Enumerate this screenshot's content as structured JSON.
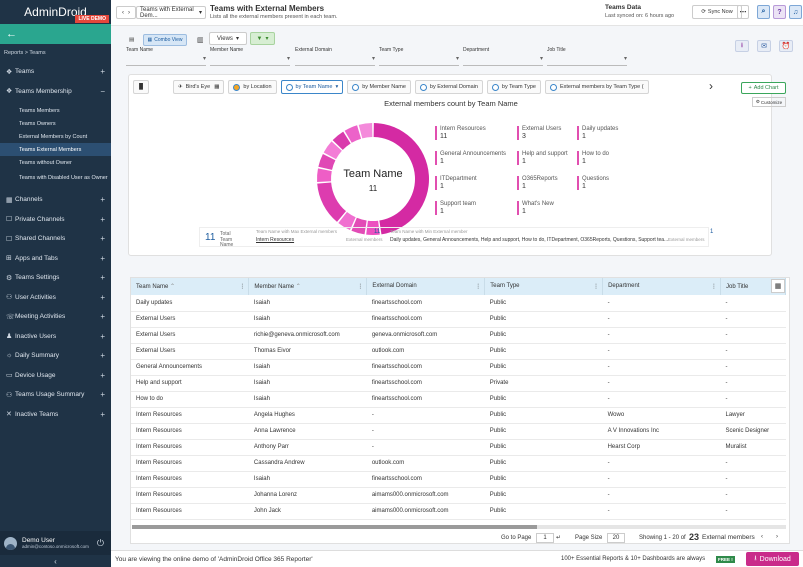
{
  "app": {
    "logo": "AdminDroid",
    "demo_badge": "LIVE DEMO"
  },
  "sidebar": {
    "breadcrumb": "Reports > Teams",
    "items": [
      {
        "label": "Teams",
        "icon": "teams-icon"
      },
      {
        "label": "Teams Membership",
        "icon": "membership-icon"
      },
      {
        "label": "Channels",
        "icon": "channels-icon"
      },
      {
        "label": "Private Channels",
        "icon": "private-channels-icon"
      },
      {
        "label": "Shared Channels",
        "icon": "shared-channels-icon"
      },
      {
        "label": "Apps and Tabs",
        "icon": "apps-icon"
      },
      {
        "label": "Teams Settings",
        "icon": "settings-icon"
      },
      {
        "label": "User Activities",
        "icon": "user-activities-icon"
      },
      {
        "label": "Meeting Activities",
        "icon": "meeting-icon"
      },
      {
        "label": "Inactive Users",
        "icon": "inactive-users-icon"
      },
      {
        "label": "Daily Summary",
        "icon": "daily-summary-icon"
      },
      {
        "label": "Device Usage",
        "icon": "device-icon"
      },
      {
        "label": "Teams Usage Summary",
        "icon": "usage-icon"
      },
      {
        "label": "Inactive Teams",
        "icon": "inactive-teams-icon"
      }
    ],
    "subitems": [
      "Teams Members",
      "Teams Owners",
      "External Members by Count",
      "Teams External Members",
      "Teams without Owner",
      "Teams with Disabled User as Owner"
    ],
    "user": {
      "name": "Demo User",
      "email": "admin@contoso.onmicrosoft.com"
    }
  },
  "topbar": {
    "crumb": "Teams with External Dem...",
    "title": "Teams with External Members",
    "subtitle": "Lists all the external members present in each team.",
    "sync_label": "Teams Data",
    "sync_time": "Last synced on: 6 hours ago",
    "sync_button": "Sync Now"
  },
  "toolbar": {
    "combo_view": "Combo View",
    "views": "Views",
    "filters": [
      {
        "label": "Team Name"
      },
      {
        "label": "Member Name"
      },
      {
        "label": "External Domain"
      },
      {
        "label": "Team Type"
      },
      {
        "label": "Department"
      },
      {
        "label": "Job Title"
      }
    ]
  },
  "chart_tabs": [
    "Bird's Eye",
    "by Location",
    "by Team Name",
    "by Member Name",
    "by External Domain",
    "by Team Type",
    "External members by Team Type ("
  ],
  "add_chart": "Add Chart",
  "customize": "Customize",
  "chart_data": {
    "type": "pie",
    "title": "External members count by Team Name",
    "center_label": "Team Name",
    "center_value": "11",
    "categories": [
      "Intern Resources",
      "General Announcements",
      "ITDepartment",
      "Support team",
      "External Users",
      "Help and support",
      "O365Reports",
      "What's New",
      "Daily updates",
      "How to do",
      "Questions"
    ],
    "values": [
      11,
      1,
      1,
      1,
      3,
      1,
      1,
      1,
      1,
      1,
      1
    ]
  },
  "summary": {
    "total_value": "11",
    "total_label": "Total Team Name",
    "max_label": "Team Name with Max External members",
    "max_name": "Intern Resources",
    "max_value": "11",
    "max_unit": "External members",
    "min_label": "Team Name with Min External member",
    "min_names": "Daily updates, General Announcements, Help and support, How to do, ITDepartment, O365Reports, Questions, Support tea...",
    "min_value": "1",
    "min_unit": "External members"
  },
  "table": {
    "columns": [
      "Team Name",
      "Member Name",
      "External Domain",
      "Team Type",
      "Department",
      "Job Title"
    ],
    "rows": [
      [
        "Daily updates",
        "Isaiah",
        "fineartsschool.com",
        "Public",
        "-",
        "-"
      ],
      [
        "External Users",
        "Isaiah",
        "fineartsschool.com",
        "Public",
        "-",
        "-"
      ],
      [
        "External Users",
        "richie@geneva.onmicrosoft.com",
        "geneva.onmicrosoft.com",
        "Public",
        "-",
        "-"
      ],
      [
        "External Users",
        "Thomas Eivor",
        "outlook.com",
        "Public",
        "-",
        "-"
      ],
      [
        "General Announcements",
        "Isaiah",
        "fineartsschool.com",
        "Public",
        "-",
        "-"
      ],
      [
        "Help and support",
        "Isaiah",
        "fineartsschool.com",
        "Private",
        "-",
        "-"
      ],
      [
        "How to do",
        "Isaiah",
        "fineartsschool.com",
        "Public",
        "-",
        "-"
      ],
      [
        "Intern Resources",
        "Angela Hughes",
        "-",
        "Public",
        "Wowo",
        "Lawyer"
      ],
      [
        "Intern Resources",
        "Anna Lawrence",
        "-",
        "Public",
        "A V Innovations Inc",
        "Scenic Designer"
      ],
      [
        "Intern Resources",
        "Anthony Parr",
        "-",
        "Public",
        "Hearst Corp",
        "Muralist"
      ],
      [
        "Intern Resources",
        "Cassandra Andrew",
        "outlook.com",
        "Public",
        "-",
        "-"
      ],
      [
        "Intern Resources",
        "Isaiah",
        "fineartsschool.com",
        "Public",
        "-",
        "-"
      ],
      [
        "Intern Resources",
        "Johanna Lorenz",
        "aimams000.onmicrosoft.com",
        "Public",
        "-",
        "-"
      ],
      [
        "Intern Resources",
        "John Jack",
        "aimams000.onmicrosoft.com",
        "Public",
        "-",
        "-"
      ]
    ]
  },
  "pager": {
    "goto_label": "Go to Page",
    "page": "1",
    "size_label": "Page Size",
    "size": "20",
    "showing": "Showing 1 - 20 of",
    "total": "23",
    "unit": "External members"
  },
  "footer": {
    "notice": "You are viewing the online demo of 'AdminDroid Office 365 Reporter'",
    "promo": "100+ Essential Reports & 10+ Dashboards are always",
    "free": "FREE !",
    "download": "Download"
  }
}
